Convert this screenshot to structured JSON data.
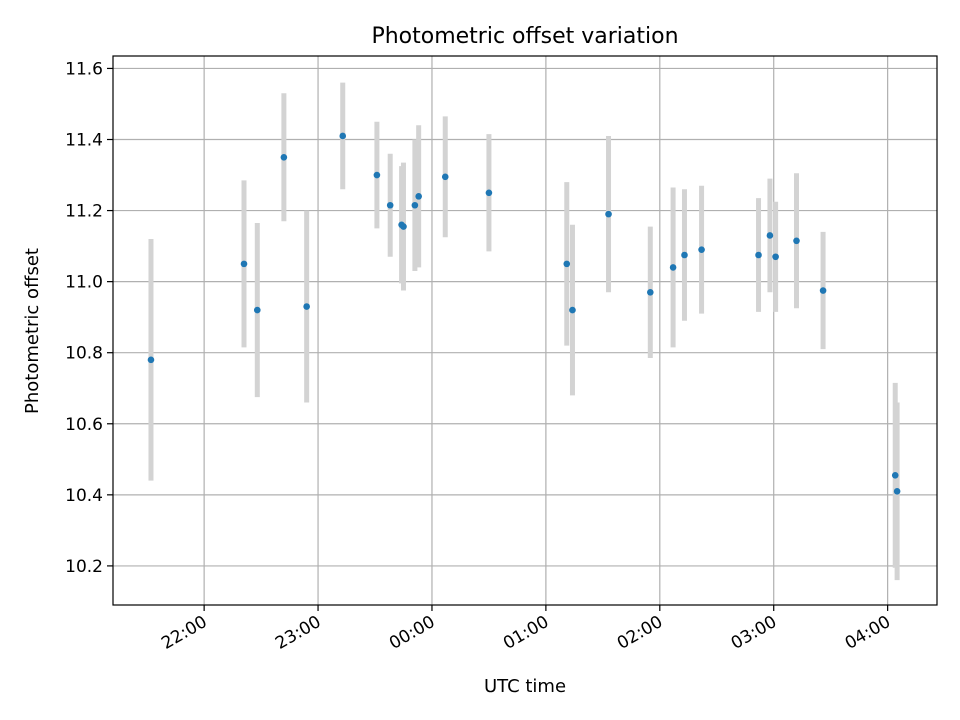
{
  "chart_data": {
    "type": "scatter",
    "title": "Photometric offset variation",
    "xlabel": "UTC time",
    "ylabel": "Photometric offset",
    "x_tick_labels": [
      "22:00",
      "23:00",
      "00:00",
      "01:00",
      "02:00",
      "03:00",
      "04:00"
    ],
    "x_tick_minutes": [
      1320,
      1380,
      1440,
      1500,
      1560,
      1620,
      1680
    ],
    "xlim_minutes": [
      1272,
      1706
    ],
    "y_tick_labels": [
      "10.2",
      "10.4",
      "10.6",
      "10.8",
      "11.0",
      "11.2",
      "11.4",
      "11.6"
    ],
    "y_ticks": [
      10.2,
      10.4,
      10.6,
      10.8,
      11.0,
      11.2,
      11.4,
      11.6
    ],
    "ylim": [
      10.09,
      11.635
    ],
    "grid": true,
    "colors": {
      "point": "#1f77b4",
      "errorbar": "#d3d3d3",
      "grid": "#b0b0b0",
      "axis": "#000000"
    },
    "series": [
      {
        "points": [
          {
            "t": "21:32",
            "y": 10.78,
            "err": 0.34
          },
          {
            "t": "22:21",
            "y": 11.05,
            "err": 0.235
          },
          {
            "t": "22:28",
            "y": 10.92,
            "err": 0.245
          },
          {
            "t": "22:42",
            "y": 11.35,
            "err": 0.18
          },
          {
            "t": "22:54",
            "y": 10.93,
            "err": 0.27
          },
          {
            "t": "23:13",
            "y": 11.41,
            "err": 0.15
          },
          {
            "t": "23:31",
            "y": 11.3,
            "err": 0.15
          },
          {
            "t": "23:38",
            "y": 11.215,
            "err": 0.145
          },
          {
            "t": "23:44",
            "y": 11.16,
            "err": 0.165
          },
          {
            "t": "23:45",
            "y": 11.155,
            "err": 0.18
          },
          {
            "t": "23:51",
            "y": 11.215,
            "err": 0.185
          },
          {
            "t": "23:53",
            "y": 11.24,
            "err": 0.2
          },
          {
            "t": "00:07",
            "y": 11.295,
            "err": 0.17
          },
          {
            "t": "00:30",
            "y": 11.25,
            "err": 0.165
          },
          {
            "t": "01:11",
            "y": 11.05,
            "err": 0.23
          },
          {
            "t": "01:14",
            "y": 10.92,
            "err": 0.24
          },
          {
            "t": "01:33",
            "y": 11.19,
            "err": 0.22
          },
          {
            "t": "01:55",
            "y": 10.97,
            "err": 0.185
          },
          {
            "t": "02:07",
            "y": 11.04,
            "err": 0.225
          },
          {
            "t": "02:13",
            "y": 11.075,
            "err": 0.185
          },
          {
            "t": "02:22",
            "y": 11.09,
            "err": 0.18
          },
          {
            "t": "02:52",
            "y": 11.075,
            "err": 0.16
          },
          {
            "t": "02:58",
            "y": 11.13,
            "err": 0.16
          },
          {
            "t": "03:01",
            "y": 11.07,
            "err": 0.155
          },
          {
            "t": "03:12",
            "y": 11.115,
            "err": 0.19
          },
          {
            "t": "03:26",
            "y": 10.975,
            "err": 0.165
          },
          {
            "t": "04:04",
            "y": 10.455,
            "err": 0.26
          },
          {
            "t": "04:05",
            "y": 10.41,
            "err": 0.25
          }
        ]
      }
    ]
  }
}
